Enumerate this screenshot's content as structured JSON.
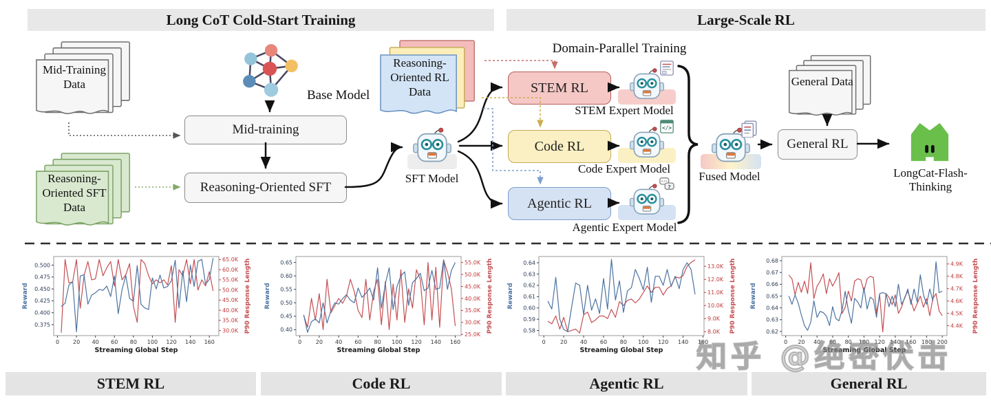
{
  "header": {
    "cold_start_title": "Long CoT Cold-Start Training",
    "large_scale_title": "Large-Scale RL"
  },
  "diagram": {
    "mid_training_data": "Mid-Training Data",
    "base_model": "Base Model",
    "mid_training": "Mid-training",
    "reasoning_sft_data": "Reasoning-Oriented SFT Data",
    "reasoning_sft": "Reasoning-Oriented SFT",
    "reasoning_rl_data": "Reasoning-Oriented RL Data",
    "sft_model": "SFT Model",
    "domain_parallel": "Domain-Parallel Training",
    "stem_rl": "STEM RL",
    "code_rl": "Code RL",
    "agentic_rl": "Agentic RL",
    "stem_expert": "STEM Expert Model",
    "code_expert": "Code Expert Model",
    "agentic_expert": "Agentic Expert Model",
    "fused_model": "Fused Model",
    "general_data": "General Data",
    "general_rl": "General RL",
    "longcat": "LongCat-Flash-Thinking"
  },
  "watermark": "知乎 @绝密伏击",
  "colors": {
    "reward_line": "#4c72a0",
    "length_line": "#c44e52",
    "stem_box_fill": "#f5c8c6",
    "stem_box_border": "#b95d58",
    "code_box_fill": "#fbf0c3",
    "code_box_border": "#c3ab55",
    "agentic_box_fill": "#d5e2f3",
    "agentic_box_border": "#7d9cc9",
    "longcat_green": "#6abf4b",
    "header_bar": "#e8e8e8"
  },
  "chart_data": [
    {
      "type": "line",
      "panel_label": "STEM RL",
      "xlabel": "Streaming Global Step",
      "x_start": 4,
      "x_step": 4,
      "xlim": [
        -4,
        170
      ],
      "x_ticks": [
        0,
        20,
        40,
        60,
        80,
        100,
        120,
        140,
        160
      ],
      "left": {
        "label": "Reward",
        "color": "#4c72a0",
        "decimals": 3,
        "lim": [
          0.352,
          0.518
        ],
        "ticks": [
          0.375,
          0.4,
          0.425,
          0.45,
          0.475,
          0.5
        ],
        "values": [
          0.413,
          0.42,
          0.458,
          0.465,
          0.36,
          0.477,
          0.48,
          0.418,
          0.437,
          0.442,
          0.449,
          0.447,
          0.456,
          0.434,
          0.477,
          0.398,
          0.448,
          0.478,
          0.43,
          0.424,
          0.499,
          0.418,
          0.41,
          0.407,
          0.473,
          0.45,
          0.479,
          0.452,
          0.455,
          0.467,
          0.51,
          0.41,
          0.488,
          0.423,
          0.5,
          0.455,
          0.508,
          0.512,
          0.46,
          0.47,
          0.515
        ]
      },
      "right": {
        "label": "P90 Response Length",
        "color": "#c44e52",
        "decimals": 1,
        "unit": "K",
        "lim": [
          27.5,
          66.5
        ],
        "ticks": [
          30,
          35,
          40,
          45,
          50,
          55,
          60,
          65
        ],
        "values": [
          29,
          65,
          53.5,
          54,
          65,
          41,
          57,
          64,
          55,
          55.5,
          65,
          57,
          61,
          64,
          52,
          65,
          55,
          57.5,
          63,
          42,
          34,
          65,
          63,
          57,
          53,
          55,
          53.5,
          55,
          52.5,
          62,
          34,
          60,
          57,
          65,
          53,
          65,
          50,
          55,
          52,
          59,
          49.5
        ]
      }
    },
    {
      "type": "line",
      "panel_label": "Code RL",
      "xlabel": "Streaming Global Step",
      "x_start": 4,
      "x_step": 4,
      "xlim": [
        -4,
        166
      ],
      "x_ticks": [
        0,
        20,
        40,
        60,
        80,
        100,
        120,
        140,
        160
      ],
      "left": {
        "label": "Reward",
        "color": "#4c72a0",
        "decimals": 2,
        "lim": [
          0.378,
          0.672
        ],
        "ticks": [
          0.4,
          0.45,
          0.5,
          0.55,
          0.6,
          0.65
        ],
        "values": [
          0.455,
          0.39,
          0.43,
          0.44,
          0.425,
          0.5,
          0.425,
          0.47,
          0.5,
          0.495,
          0.515,
          0.53,
          0.51,
          0.5,
          0.555,
          0.52,
          0.535,
          0.555,
          0.51,
          0.63,
          0.48,
          0.57,
          0.63,
          0.475,
          0.56,
          0.6,
          0.615,
          0.49,
          0.575,
          0.59,
          0.61,
          0.545,
          0.555,
          0.62,
          0.55,
          0.555,
          0.66,
          0.55,
          0.62,
          0.65
        ]
      },
      "right": {
        "label": "P90 Response Length",
        "color": "#c44e52",
        "decimals": 1,
        "unit": "K",
        "lim": [
          24.5,
          57.5
        ],
        "ticks": [
          25,
          30,
          35,
          40,
          45,
          50,
          55
        ],
        "values": [
          33,
          28,
          40,
          31,
          42,
          27,
          48,
          34,
          37,
          40,
          38,
          41,
          48,
          43,
          35,
          32,
          48,
          31,
          43,
          48,
          29,
          47,
          27,
          46,
          31,
          52,
          30,
          44,
          36,
          52,
          48,
          29,
          55,
          31,
          53,
          28,
          56,
          51,
          44,
          28.5
        ]
      }
    },
    {
      "type": "line",
      "panel_label": "Agentic RL",
      "xlabel": "Streaming Global Step",
      "x_start": 4,
      "x_step": 4,
      "xlim": [
        -5,
        161
      ],
      "x_ticks": [
        0,
        20,
        40,
        60,
        80,
        100,
        120,
        140,
        160
      ],
      "left": {
        "label": "Reward",
        "color": "#4c72a0",
        "decimals": 2,
        "lim": [
          0.5755,
          0.6455
        ],
        "ticks": [
          0.58,
          0.59,
          0.6,
          0.61,
          0.62,
          0.63,
          0.64
        ],
        "values": [
          0.606,
          0.599,
          0.627,
          0.59,
          0.581,
          0.579,
          0.601,
          0.622,
          0.62,
          0.594,
          0.62,
          0.598,
          0.608,
          0.595,
          0.626,
          0.599,
          0.643,
          0.607,
          0.624,
          0.596,
          0.615,
          0.618,
          0.634,
          0.626,
          0.616,
          0.636,
          0.605,
          0.628,
          0.628,
          0.62,
          0.634,
          0.619,
          0.628,
          0.617,
          0.634,
          0.64,
          0.634,
          0.612
        ]
      },
      "right": {
        "label": "P90 Response Length",
        "color": "#c44e52",
        "decimals": 1,
        "unit": "K",
        "lim": [
          7.7,
          13.75
        ],
        "ticks": [
          8,
          9,
          10,
          11,
          12,
          13
        ],
        "values": [
          8.8,
          8.6,
          9.2,
          8.2,
          9.1,
          8.0,
          8.1,
          8.2,
          7.9,
          9.3,
          9.5,
          8.7,
          8.9,
          9.2,
          9.2,
          9.0,
          9.7,
          9.1,
          10.3,
          10.0,
          10.4,
          10.5,
          10.2,
          10.5,
          11.0,
          11.5,
          11.0,
          11.4,
          11.4,
          10.8,
          11.3,
          11.5,
          12.2,
          12.1,
          12.3,
          13.0,
          13.3,
          13.5
        ]
      }
    },
    {
      "type": "line",
      "panel_label": "General RL",
      "xlabel": "Streaming Global Step",
      "x_start": 4,
      "x_step": 4,
      "xlim": [
        -5,
        206
      ],
      "x_ticks": [
        0,
        20,
        40,
        60,
        80,
        100,
        120,
        140,
        160,
        180,
        200
      ],
      "left": {
        "label": "Reward",
        "color": "#4c72a0",
        "decimals": 2,
        "lim": [
          0.6165,
          0.6835
        ],
        "ticks": [
          0.62,
          0.63,
          0.64,
          0.65,
          0.66,
          0.67,
          0.68
        ],
        "values": [
          0.65,
          0.643,
          0.651,
          0.644,
          0.634,
          0.625,
          0.621,
          0.628,
          0.646,
          0.632,
          0.637,
          0.636,
          0.633,
          0.625,
          0.641,
          0.631,
          0.629,
          0.638,
          0.654,
          0.638,
          0.627,
          0.648,
          0.645,
          0.64,
          0.657,
          0.639,
          0.649,
          0.647,
          0.632,
          0.652,
          0.653,
          0.652,
          0.641,
          0.65,
          0.641,
          0.66,
          0.643,
          0.648,
          0.656,
          0.643,
          0.656,
          0.645,
          0.668,
          0.651,
          0.643,
          0.656,
          0.646,
          0.679,
          0.653,
          0.654
        ]
      },
      "right": {
        "label": "P90 Response Length",
        "color": "#c44e52",
        "decimals": 1,
        "unit": "K",
        "lim": [
          4.32,
          4.96
        ],
        "ticks": [
          4.4,
          4.5,
          4.6,
          4.7,
          4.8,
          4.9
        ],
        "values": [
          4.81,
          4.78,
          4.65,
          4.75,
          4.67,
          4.76,
          4.66,
          4.91,
          4.62,
          4.72,
          4.76,
          4.82,
          4.66,
          4.78,
          4.72,
          4.77,
          4.83,
          4.5,
          4.55,
          4.68,
          4.6,
          4.76,
          4.78,
          4.77,
          4.68,
          4.78,
          4.8,
          4.79,
          4.5,
          4.65,
          4.35,
          4.66,
          4.63,
          4.57,
          4.65,
          4.5,
          4.55,
          4.63,
          4.68,
          4.6,
          4.52,
          4.58,
          4.64,
          4.55,
          4.62,
          4.48,
          4.62,
          4.66,
          4.52,
          4.48
        ]
      }
    }
  ]
}
